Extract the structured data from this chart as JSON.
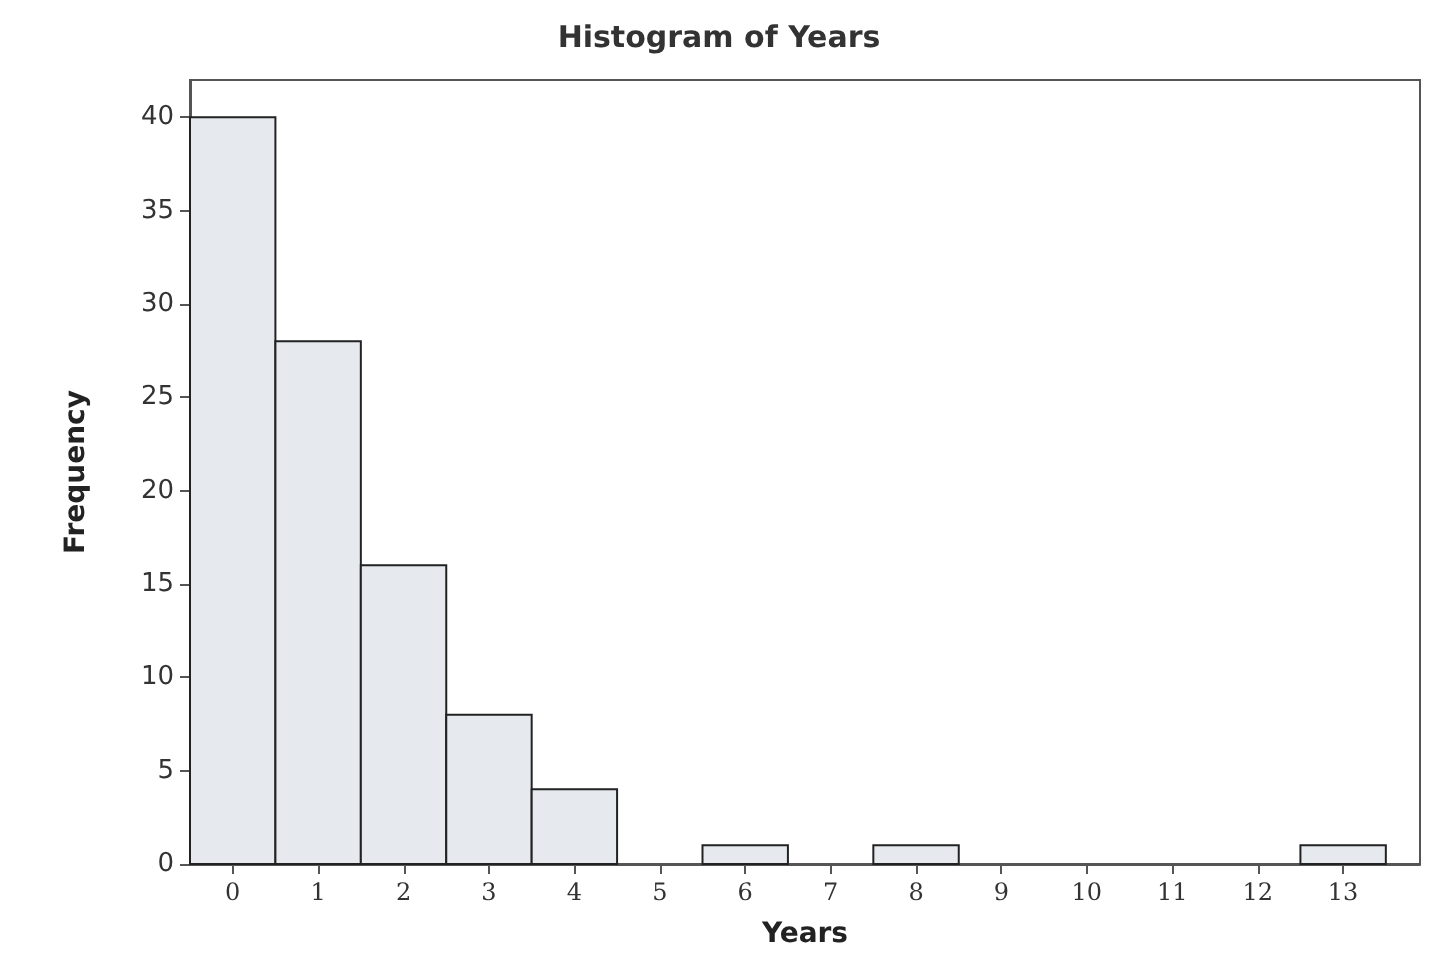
{
  "chart_data": {
    "type": "histogram",
    "title": "Histogram of Years",
    "xlabel": "Years",
    "ylabel": "Frequency",
    "bins": [
      -0.5,
      0.5,
      1.5,
      2.5,
      3.5,
      4.5,
      5.5,
      6.5,
      7.5,
      8.5,
      9.5,
      10.5,
      11.5,
      12.5,
      13.5
    ],
    "values": [
      40,
      28,
      16,
      8,
      4,
      0,
      1,
      0,
      1,
      0,
      0,
      0,
      0,
      1
    ],
    "color": "#e6eaef",
    "xlim": [
      -0.5,
      13.9
    ],
    "xticks": [
      0,
      1,
      2,
      3,
      4,
      5,
      6,
      7,
      8,
      9,
      10,
      11,
      12,
      13
    ],
    "ylim": [
      0,
      42
    ],
    "yticks": [
      0,
      5,
      10,
      15,
      20,
      25,
      30,
      35,
      40
    ],
    "grid": false
  }
}
